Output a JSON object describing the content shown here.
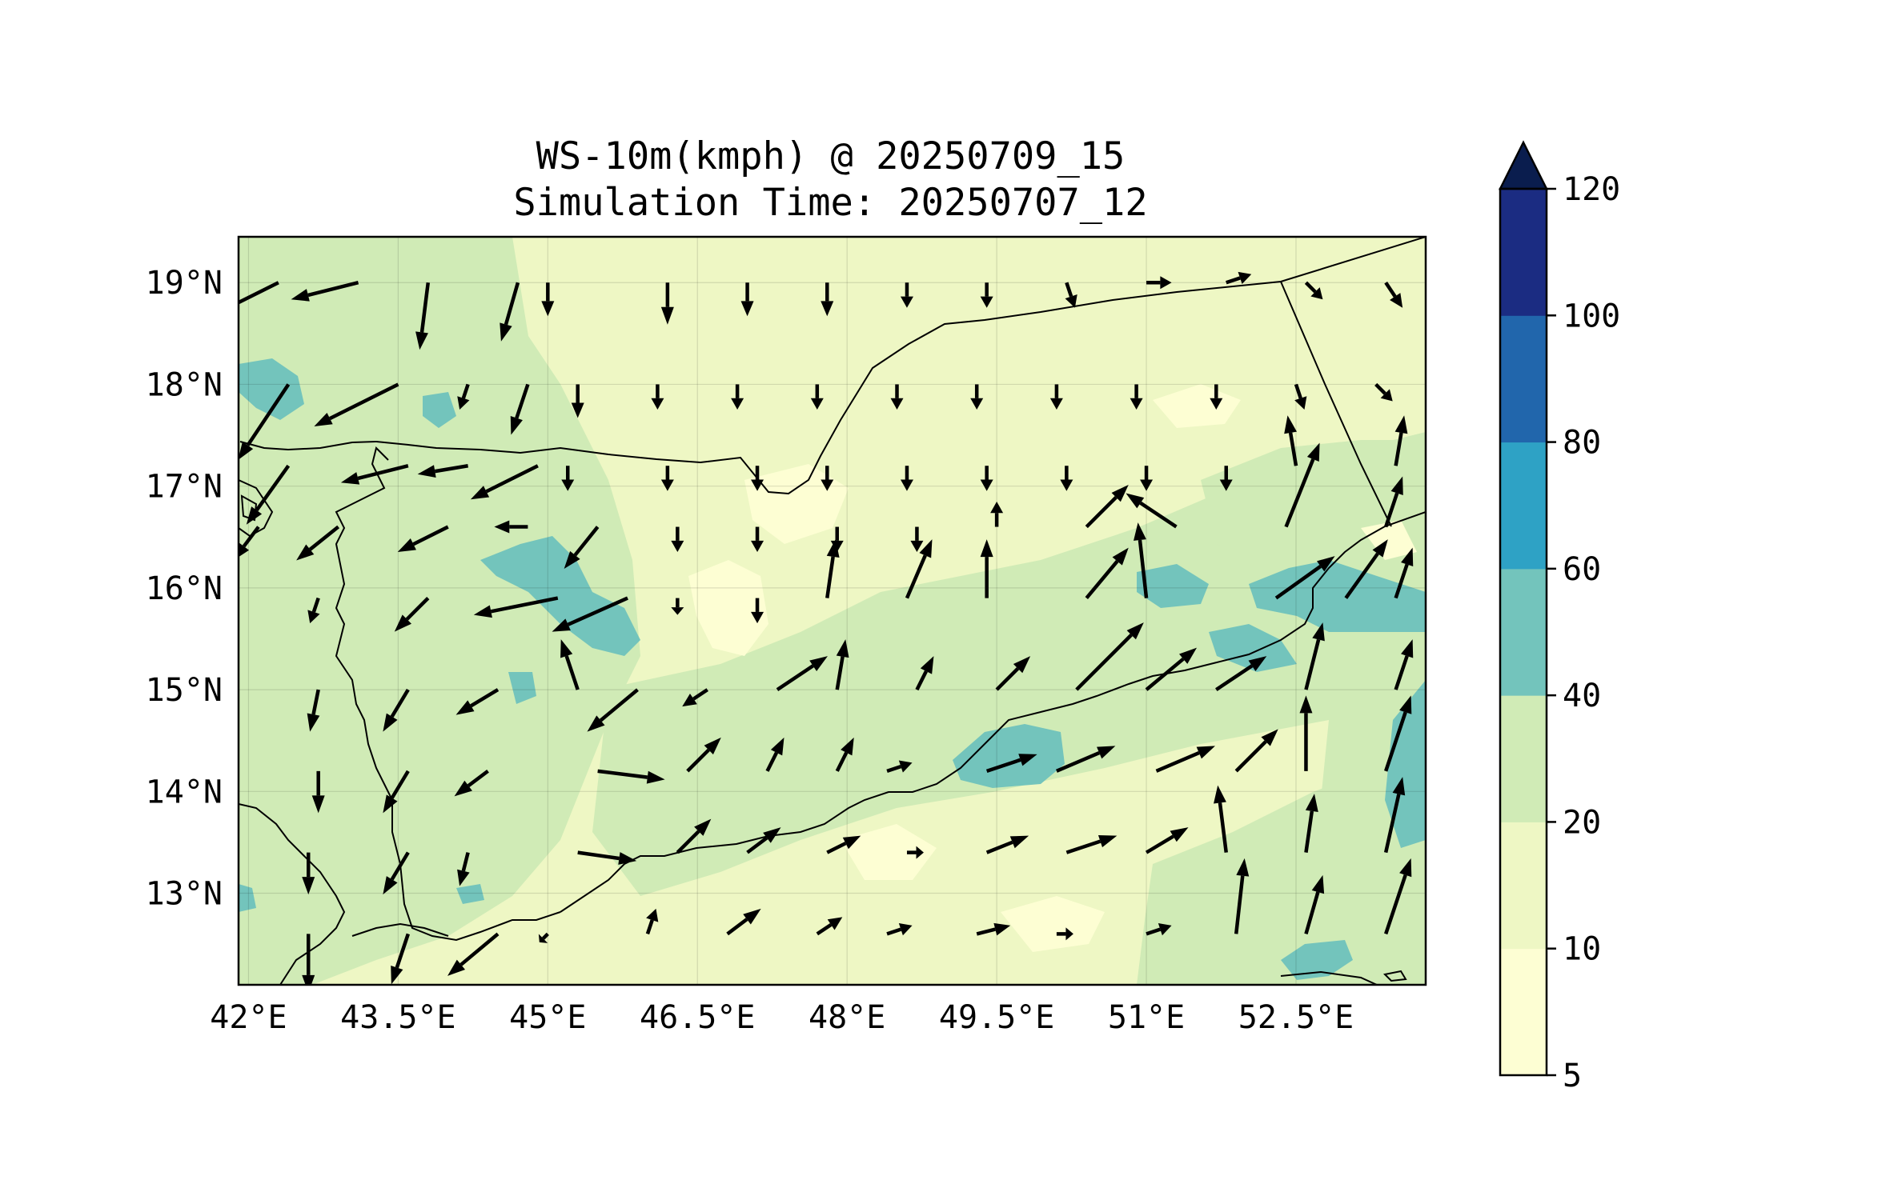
{
  "title_line1": "WS-10m(kmph) @ 20250709_15",
  "title_line2": "Simulation Time: 20250707_12",
  "map": {
    "lon_range": [
      41.9,
      53.8
    ],
    "lat_range": [
      12.1,
      19.45
    ],
    "lon_ticks": [
      42,
      43.5,
      45,
      46.5,
      48,
      49.5,
      51,
      52.5
    ],
    "lon_tick_labels": [
      "42°E",
      "43.5°E",
      "45°E",
      "46.5°E",
      "48°E",
      "49.5°E",
      "51°E",
      "52.5°E"
    ],
    "lat_ticks": [
      13,
      14,
      15,
      16,
      17,
      18,
      19
    ],
    "lat_tick_labels": [
      "13°N",
      "14°N",
      "15°N",
      "16°N",
      "17°N",
      "18°N",
      "19°N"
    ],
    "grid": true,
    "background_fill": "#eef7c4"
  },
  "colorbar": {
    "levels": [
      5,
      10,
      20,
      40,
      60,
      80,
      100,
      120
    ],
    "tick_labels": [
      "5",
      "10",
      "20",
      "40",
      "60",
      "80",
      "100",
      "120"
    ],
    "colors": [
      "#fdfed3",
      "#eef7c4",
      "#d0ebb6",
      "#73c4bc",
      "#2ea2c5",
      "#2166ac",
      "#1b2c82"
    ],
    "extend_color": "#0a1d4e",
    "extend": "max"
  },
  "wind_vectors": [
    {
      "lon": 42.3,
      "lat": 19.0,
      "u": -8,
      "v": -4
    },
    {
      "lon": 43.1,
      "lat": 19.0,
      "u": -8,
      "v": -2
    },
    {
      "lon": 43.8,
      "lat": 19.0,
      "u": -1,
      "v": -8
    },
    {
      "lon": 44.7,
      "lat": 19.0,
      "u": -2,
      "v": -7
    },
    {
      "lon": 45.0,
      "lat": 19.0,
      "u": 0,
      "v": -4
    },
    {
      "lon": 46.2,
      "lat": 19.0,
      "u": 0,
      "v": -5
    },
    {
      "lon": 47.0,
      "lat": 19.0,
      "u": 0,
      "v": -4
    },
    {
      "lon": 47.8,
      "lat": 19.0,
      "u": 0,
      "v": -4
    },
    {
      "lon": 48.6,
      "lat": 19.0,
      "u": 0,
      "v": -3
    },
    {
      "lon": 49.4,
      "lat": 19.0,
      "u": 0,
      "v": -3
    },
    {
      "lon": 50.2,
      "lat": 19.0,
      "u": 1,
      "v": -3
    },
    {
      "lon": 51.0,
      "lat": 19.0,
      "u": 3,
      "v": 0
    },
    {
      "lon": 51.8,
      "lat": 19.0,
      "u": 3,
      "v": 1
    },
    {
      "lon": 52.6,
      "lat": 19.0,
      "u": 2,
      "v": -2
    },
    {
      "lon": 53.4,
      "lat": 19.0,
      "u": 2,
      "v": -3
    },
    {
      "lon": 42.4,
      "lat": 18.0,
      "u": -6,
      "v": -9
    },
    {
      "lon": 43.5,
      "lat": 18.0,
      "u": -10,
      "v": -5
    },
    {
      "lon": 44.2,
      "lat": 18.0,
      "u": -1,
      "v": -3
    },
    {
      "lon": 44.8,
      "lat": 18.0,
      "u": -2,
      "v": -6
    },
    {
      "lon": 45.3,
      "lat": 18.0,
      "u": 0,
      "v": -4
    },
    {
      "lon": 46.1,
      "lat": 18.0,
      "u": 0,
      "v": -3
    },
    {
      "lon": 46.9,
      "lat": 18.0,
      "u": 0,
      "v": -3
    },
    {
      "lon": 47.7,
      "lat": 18.0,
      "u": 0,
      "v": -3
    },
    {
      "lon": 48.5,
      "lat": 18.0,
      "u": 0,
      "v": -3
    },
    {
      "lon": 49.3,
      "lat": 18.0,
      "u": 0,
      "v": -3
    },
    {
      "lon": 50.1,
      "lat": 18.0,
      "u": 0,
      "v": -3
    },
    {
      "lon": 50.9,
      "lat": 18.0,
      "u": 0,
      "v": -3
    },
    {
      "lon": 51.7,
      "lat": 18.0,
      "u": 0,
      "v": -3
    },
    {
      "lon": 52.5,
      "lat": 18.0,
      "u": 1,
      "v": -3
    },
    {
      "lon": 53.3,
      "lat": 18.0,
      "u": 2,
      "v": -2
    },
    {
      "lon": 42.4,
      "lat": 17.2,
      "u": -5,
      "v": -7
    },
    {
      "lon": 43.6,
      "lat": 17.2,
      "u": -8,
      "v": -2
    },
    {
      "lon": 44.2,
      "lat": 17.2,
      "u": -6,
      "v": -1
    },
    {
      "lon": 44.9,
      "lat": 17.2,
      "u": -8,
      "v": -4
    },
    {
      "lon": 45.2,
      "lat": 17.2,
      "u": 0,
      "v": -3
    },
    {
      "lon": 46.2,
      "lat": 17.2,
      "u": 0,
      "v": -3
    },
    {
      "lon": 47.1,
      "lat": 17.2,
      "u": 0,
      "v": -3
    },
    {
      "lon": 47.8,
      "lat": 17.2,
      "u": 0,
      "v": -3
    },
    {
      "lon": 48.6,
      "lat": 17.2,
      "u": 0,
      "v": -3
    },
    {
      "lon": 49.4,
      "lat": 17.2,
      "u": 0,
      "v": -3
    },
    {
      "lon": 50.2,
      "lat": 17.2,
      "u": 0,
      "v": -3
    },
    {
      "lon": 51.0,
      "lat": 17.2,
      "u": 0,
      "v": -3
    },
    {
      "lon": 51.8,
      "lat": 17.2,
      "u": 0,
      "v": -3
    },
    {
      "lon": 52.5,
      "lat": 17.2,
      "u": -1,
      "v": 6
    },
    {
      "lon": 53.5,
      "lat": 17.2,
      "u": 1,
      "v": 6
    },
    {
      "lon": 42.1,
      "lat": 16.6,
      "u": -3,
      "v": -4
    },
    {
      "lon": 42.9,
      "lat": 16.6,
      "u": -5,
      "v": -4
    },
    {
      "lon": 44.0,
      "lat": 16.6,
      "u": -6,
      "v": -3
    },
    {
      "lon": 44.8,
      "lat": 16.6,
      "u": -4,
      "v": 0
    },
    {
      "lon": 45.5,
      "lat": 16.6,
      "u": -4,
      "v": -5
    },
    {
      "lon": 46.3,
      "lat": 16.6,
      "u": 0,
      "v": -3
    },
    {
      "lon": 47.1,
      "lat": 16.6,
      "u": 0,
      "v": -3
    },
    {
      "lon": 47.9,
      "lat": 16.6,
      "u": 0,
      "v": -3
    },
    {
      "lon": 48.7,
      "lat": 16.6,
      "u": 0,
      "v": -3
    },
    {
      "lon": 49.5,
      "lat": 16.6,
      "u": 0,
      "v": 3
    },
    {
      "lon": 50.4,
      "lat": 16.6,
      "u": 5,
      "v": 5
    },
    {
      "lon": 51.3,
      "lat": 16.6,
      "u": -6,
      "v": 4
    },
    {
      "lon": 52.4,
      "lat": 16.6,
      "u": 4,
      "v": 10
    },
    {
      "lon": 53.4,
      "lat": 16.6,
      "u": 2,
      "v": 6
    },
    {
      "lon": 42.7,
      "lat": 15.9,
      "u": -1,
      "v": -3
    },
    {
      "lon": 43.8,
      "lat": 15.9,
      "u": -4,
      "v": -4
    },
    {
      "lon": 45.1,
      "lat": 15.9,
      "u": -10,
      "v": -2
    },
    {
      "lon": 45.8,
      "lat": 15.9,
      "u": -9,
      "v": -4
    },
    {
      "lon": 46.3,
      "lat": 15.9,
      "u": 0,
      "v": -2
    },
    {
      "lon": 47.1,
      "lat": 15.9,
      "u": 0,
      "v": -3
    },
    {
      "lon": 47.8,
      "lat": 15.9,
      "u": 1,
      "v": 7
    },
    {
      "lon": 48.6,
      "lat": 15.9,
      "u": 3,
      "v": 7
    },
    {
      "lon": 49.4,
      "lat": 15.9,
      "u": 0,
      "v": 7
    },
    {
      "lon": 50.4,
      "lat": 15.9,
      "u": 5,
      "v": 6
    },
    {
      "lon": 51.0,
      "lat": 15.9,
      "u": -1,
      "v": 9
    },
    {
      "lon": 52.3,
      "lat": 15.9,
      "u": 7,
      "v": 5
    },
    {
      "lon": 53.0,
      "lat": 15.9,
      "u": 5,
      "v": 7
    },
    {
      "lon": 53.5,
      "lat": 15.9,
      "u": 2,
      "v": 6
    },
    {
      "lon": 42.7,
      "lat": 15.0,
      "u": -1,
      "v": -5
    },
    {
      "lon": 43.6,
      "lat": 15.0,
      "u": -3,
      "v": -5
    },
    {
      "lon": 44.5,
      "lat": 15.0,
      "u": -5,
      "v": -3
    },
    {
      "lon": 45.3,
      "lat": 15.0,
      "u": -2,
      "v": 6
    },
    {
      "lon": 45.9,
      "lat": 15.0,
      "u": -6,
      "v": -5
    },
    {
      "lon": 46.6,
      "lat": 15.0,
      "u": -3,
      "v": -2
    },
    {
      "lon": 47.3,
      "lat": 15.0,
      "u": 6,
      "v": 4
    },
    {
      "lon": 47.9,
      "lat": 15.0,
      "u": 1,
      "v": 6
    },
    {
      "lon": 48.7,
      "lat": 15.0,
      "u": 2,
      "v": 4
    },
    {
      "lon": 49.5,
      "lat": 15.0,
      "u": 4,
      "v": 4
    },
    {
      "lon": 50.3,
      "lat": 15.0,
      "u": 8,
      "v": 8
    },
    {
      "lon": 51.0,
      "lat": 15.0,
      "u": 6,
      "v": 5
    },
    {
      "lon": 51.7,
      "lat": 15.0,
      "u": 6,
      "v": 4
    },
    {
      "lon": 52.6,
      "lat": 15.0,
      "u": 2,
      "v": 8
    },
    {
      "lon": 53.5,
      "lat": 15.0,
      "u": 2,
      "v": 6
    },
    {
      "lon": 42.7,
      "lat": 14.2,
      "u": 0,
      "v": -5
    },
    {
      "lon": 43.6,
      "lat": 14.2,
      "u": -3,
      "v": -5
    },
    {
      "lon": 44.4,
      "lat": 14.2,
      "u": -4,
      "v": -3
    },
    {
      "lon": 45.5,
      "lat": 14.2,
      "u": 8,
      "v": -1
    },
    {
      "lon": 46.4,
      "lat": 14.2,
      "u": 4,
      "v": 4
    },
    {
      "lon": 47.2,
      "lat": 14.2,
      "u": 2,
      "v": 4
    },
    {
      "lon": 47.9,
      "lat": 14.2,
      "u": 2,
      "v": 4
    },
    {
      "lon": 48.4,
      "lat": 14.2,
      "u": 3,
      "v": 1
    },
    {
      "lon": 49.4,
      "lat": 14.2,
      "u": 6,
      "v": 2
    },
    {
      "lon": 50.1,
      "lat": 14.2,
      "u": 7,
      "v": 3
    },
    {
      "lon": 51.1,
      "lat": 14.2,
      "u": 7,
      "v": 3
    },
    {
      "lon": 51.9,
      "lat": 14.2,
      "u": 5,
      "v": 5
    },
    {
      "lon": 52.6,
      "lat": 14.2,
      "u": 0,
      "v": 9
    },
    {
      "lon": 53.4,
      "lat": 14.2,
      "u": 3,
      "v": 9
    },
    {
      "lon": 42.6,
      "lat": 13.4,
      "u": 0,
      "v": -5
    },
    {
      "lon": 43.6,
      "lat": 13.4,
      "u": -3,
      "v": -5
    },
    {
      "lon": 44.2,
      "lat": 13.4,
      "u": -1,
      "v": -4
    },
    {
      "lon": 45.3,
      "lat": 13.4,
      "u": 7,
      "v": -1
    },
    {
      "lon": 46.3,
      "lat": 13.4,
      "u": 4,
      "v": 4
    },
    {
      "lon": 47.0,
      "lat": 13.4,
      "u": 4,
      "v": 3
    },
    {
      "lon": 47.8,
      "lat": 13.4,
      "u": 4,
      "v": 2
    },
    {
      "lon": 48.6,
      "lat": 13.4,
      "u": 2,
      "v": 0
    },
    {
      "lon": 49.4,
      "lat": 13.4,
      "u": 5,
      "v": 2
    },
    {
      "lon": 50.2,
      "lat": 13.4,
      "u": 6,
      "v": 2
    },
    {
      "lon": 51.0,
      "lat": 13.4,
      "u": 5,
      "v": 3
    },
    {
      "lon": 51.8,
      "lat": 13.4,
      "u": -1,
      "v": 8
    },
    {
      "lon": 52.6,
      "lat": 13.4,
      "u": 1,
      "v": 7
    },
    {
      "lon": 53.4,
      "lat": 13.4,
      "u": 2,
      "v": 9
    },
    {
      "lon": 42.6,
      "lat": 12.6,
      "u": 0,
      "v": -7
    },
    {
      "lon": 43.6,
      "lat": 12.6,
      "u": -2,
      "v": -6
    },
    {
      "lon": 44.5,
      "lat": 12.6,
      "u": -6,
      "v": -5
    },
    {
      "lon": 45.0,
      "lat": 12.6,
      "u": -1,
      "v": -1
    },
    {
      "lon": 46.0,
      "lat": 12.6,
      "u": 1,
      "v": 3
    },
    {
      "lon": 46.8,
      "lat": 12.6,
      "u": 4,
      "v": 3
    },
    {
      "lon": 47.7,
      "lat": 12.6,
      "u": 3,
      "v": 2
    },
    {
      "lon": 48.4,
      "lat": 12.6,
      "u": 3,
      "v": 1
    },
    {
      "lon": 49.3,
      "lat": 12.6,
      "u": 4,
      "v": 1
    },
    {
      "lon": 50.1,
      "lat": 12.6,
      "u": 2,
      "v": 0
    },
    {
      "lon": 51.0,
      "lat": 12.6,
      "u": 3,
      "v": 1
    },
    {
      "lon": 51.9,
      "lat": 12.6,
      "u": 1,
      "v": 9
    },
    {
      "lon": 52.6,
      "lat": 12.6,
      "u": 2,
      "v": 7
    },
    {
      "lon": 53.4,
      "lat": 12.6,
      "u": 3,
      "v": 9
    }
  ]
}
